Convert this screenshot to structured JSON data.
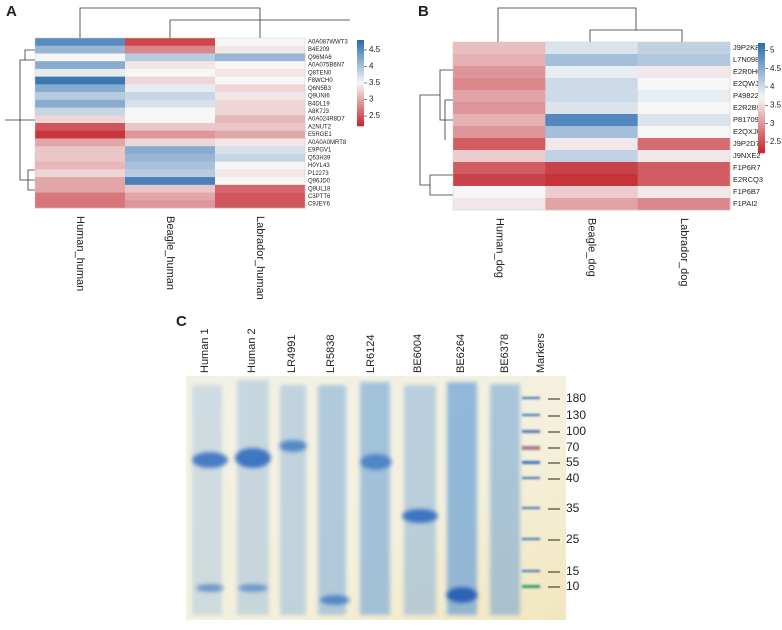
{
  "chart_data": [
    {
      "type": "heatmap",
      "label": "A",
      "columns": [
        "Human_human",
        "Beagle_human",
        "Labrador_human"
      ],
      "rows": [
        "A0A087WWT3",
        "B4E209",
        "Q96MA6",
        "A0A075B6N7",
        "Q8TEN0",
        "F8WCH0",
        "Q6N5B3",
        "Q9UNI6",
        "B4DL19",
        "A8K7J3",
        "A0A024R8D7",
        "A2NUT2",
        "E5RGE1",
        "A0A0A0MRT8",
        "E9PGV1",
        "Q53H39",
        "H0YL43",
        "P12273",
        "Q96JD0",
        "Q9UL18",
        "C3PTT6",
        "C9JEY6"
      ],
      "values": [
        [
          4.5,
          2.4,
          3.5
        ],
        [
          4.1,
          2.8,
          3.4
        ],
        [
          3.5,
          3.9,
          4.1
        ],
        [
          4.2,
          3.4,
          3.5
        ],
        [
          3.6,
          3.5,
          3.4
        ],
        [
          4.7,
          3.3,
          3.5
        ],
        [
          4.2,
          3.6,
          3.3
        ],
        [
          3.9,
          3.8,
          3.4
        ],
        [
          4.2,
          3.7,
          3.3
        ],
        [
          3.8,
          3.5,
          3.3
        ],
        [
          3.3,
          3.5,
          3.1
        ],
        [
          2.5,
          3.2,
          3.2
        ],
        [
          2.3,
          2.9,
          3.0
        ],
        [
          3.0,
          3.3,
          3.4
        ],
        [
          3.2,
          4.2,
          3.7
        ],
        [
          3.2,
          4.1,
          3.8
        ],
        [
          3.1,
          4.0,
          3.5
        ],
        [
          3.3,
          3.9,
          3.4
        ],
        [
          3.0,
          4.6,
          3.5
        ],
        [
          3.0,
          3.2,
          2.6
        ],
        [
          2.7,
          3.0,
          2.5
        ],
        [
          2.7,
          2.9,
          2.5
        ]
      ],
      "zlim": [
        2.2,
        4.8
      ],
      "zticks": [
        2.5,
        3,
        3.5,
        4,
        4.5
      ],
      "colors": [
        "#c3262e",
        "#f6f6f6",
        "#2a6cad"
      ]
    },
    {
      "type": "heatmap",
      "label": "B",
      "columns": [
        "Human_dog",
        "Beagle_dog",
        "Labrador_dog"
      ],
      "rows": [
        "J9P2K8",
        "L7N098",
        "E2R0H6",
        "E2QWJ3",
        "P49822",
        "E2R2B9",
        "P81709",
        "E2QXJ0",
        "J9P2D7",
        "J9NXE2",
        "F1P6R7",
        "E2RCQ3",
        "F1P6B7",
        "F1PAI2"
      ],
      "values": [
        [
          3.3,
          3.9,
          4.1
        ],
        [
          3.2,
          4.3,
          4.2
        ],
        [
          3.0,
          3.8,
          3.6
        ],
        [
          2.9,
          4.0,
          3.7
        ],
        [
          3.1,
          4.0,
          3.8
        ],
        [
          3.0,
          3.9,
          3.7
        ],
        [
          3.2,
          4.9,
          3.9
        ],
        [
          3.0,
          4.3,
          3.7
        ],
        [
          2.6,
          3.6,
          2.7
        ],
        [
          3.4,
          4.1,
          3.6
        ],
        [
          2.6,
          2.4,
          2.6
        ],
        [
          2.4,
          2.3,
          2.6
        ],
        [
          3.7,
          3.4,
          3.6
        ],
        [
          3.6,
          3.1,
          2.9
        ]
      ],
      "zlim": [
        2.2,
        5.2
      ],
      "zticks": [
        2.5,
        3,
        3.5,
        4,
        4.5,
        5
      ],
      "colors": [
        "#c3262e",
        "#f6f6f6",
        "#2a6cad"
      ]
    }
  ],
  "gel": {
    "label": "C",
    "lanes": [
      "Human 1",
      "Human 2",
      "LR4991",
      "LR5838",
      "LR6124",
      "BE6004",
      "BE6264",
      "BE6378",
      "Markers"
    ],
    "markers": [
      180,
      130,
      100,
      70,
      55,
      40,
      35,
      25,
      15,
      10
    ]
  }
}
